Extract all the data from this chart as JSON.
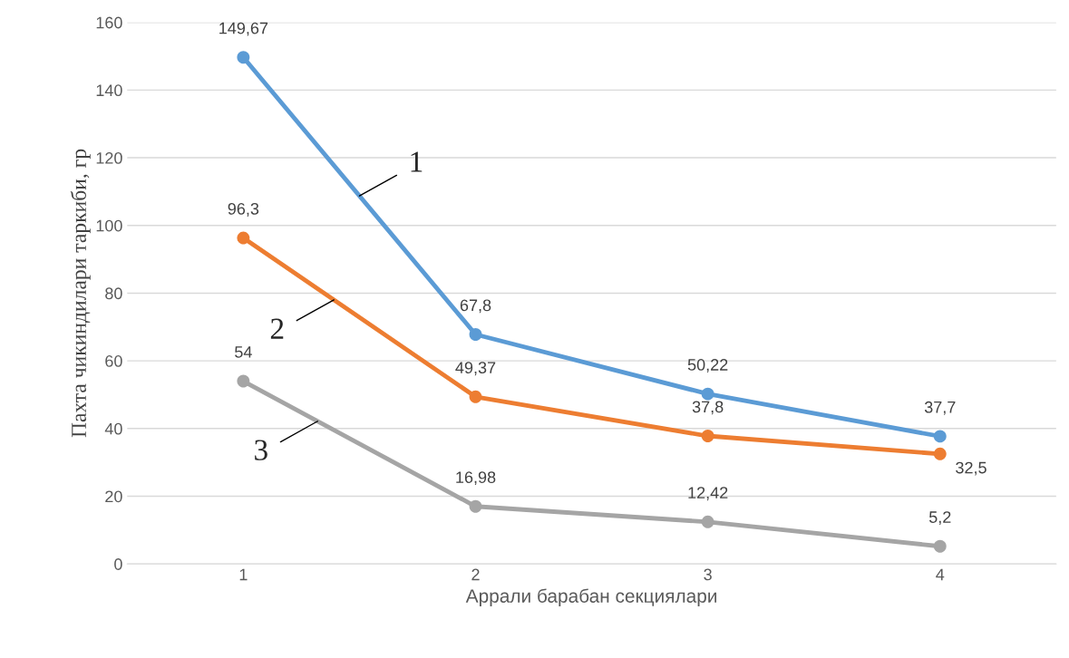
{
  "chart_data": {
    "type": "line",
    "categories": [
      "1",
      "2",
      "3",
      "4"
    ],
    "xlabel": "Аррали барабан секциялари",
    "ylabel": "Пахта чикиндилари таркиби, гр",
    "series": [
      {
        "name": "1",
        "color": "#5b9bd5",
        "values": [
          149.67,
          67.8,
          50.22,
          37.7
        ],
        "value_labels": [
          "149,67",
          "67,8",
          "50,22",
          "37,7"
        ]
      },
      {
        "name": "2",
        "color": "#ed7d31",
        "values": [
          96.3,
          49.37,
          37.8,
          32.5
        ],
        "value_labels": [
          "96,3",
          "49,37",
          "37,8",
          "32,5"
        ]
      },
      {
        "name": "3",
        "color": "#a5a5a5",
        "values": [
          54,
          16.98,
          12.42,
          5.2
        ],
        "value_labels": [
          "54",
          "16,98",
          "12,42",
          "5,2"
        ]
      }
    ],
    "ylim": [
      0,
      160
    ],
    "yticks": [
      0,
      20,
      40,
      60,
      80,
      100,
      120,
      140,
      160
    ],
    "grid": "y",
    "legend": false,
    "marker": "circle",
    "line_style": "solid"
  }
}
